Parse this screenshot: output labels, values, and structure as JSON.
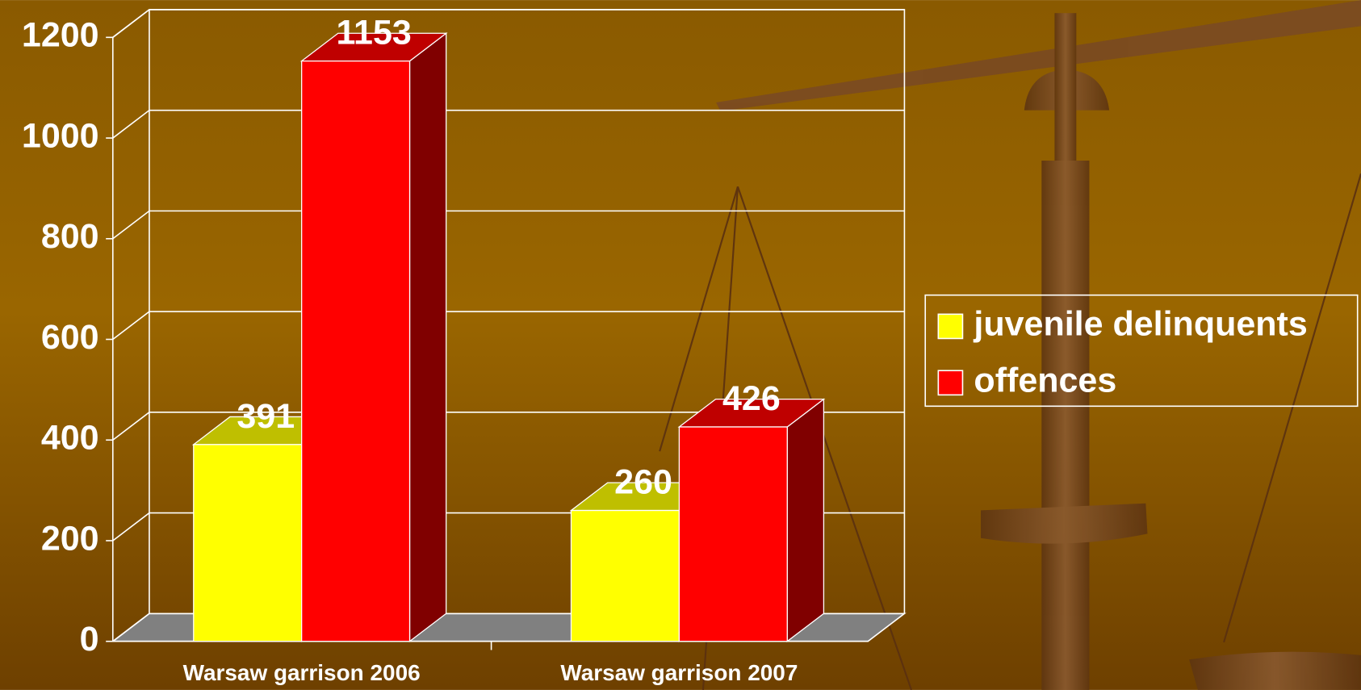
{
  "chart_data": {
    "type": "bar3d",
    "categories": [
      "Warsaw garrison 2006",
      "Warsaw garrison 2007"
    ],
    "series": [
      {
        "name": "juvenile delinquents",
        "color": "#ffff00",
        "values": [
          391,
          260
        ]
      },
      {
        "name": "offences",
        "color": "#ff0000",
        "values": [
          1153,
          426
        ]
      }
    ],
    "ylim": [
      0,
      1200
    ],
    "yticks": [
      0,
      200,
      400,
      600,
      800,
      1000,
      1200
    ],
    "grid": true,
    "legend": "right"
  }
}
